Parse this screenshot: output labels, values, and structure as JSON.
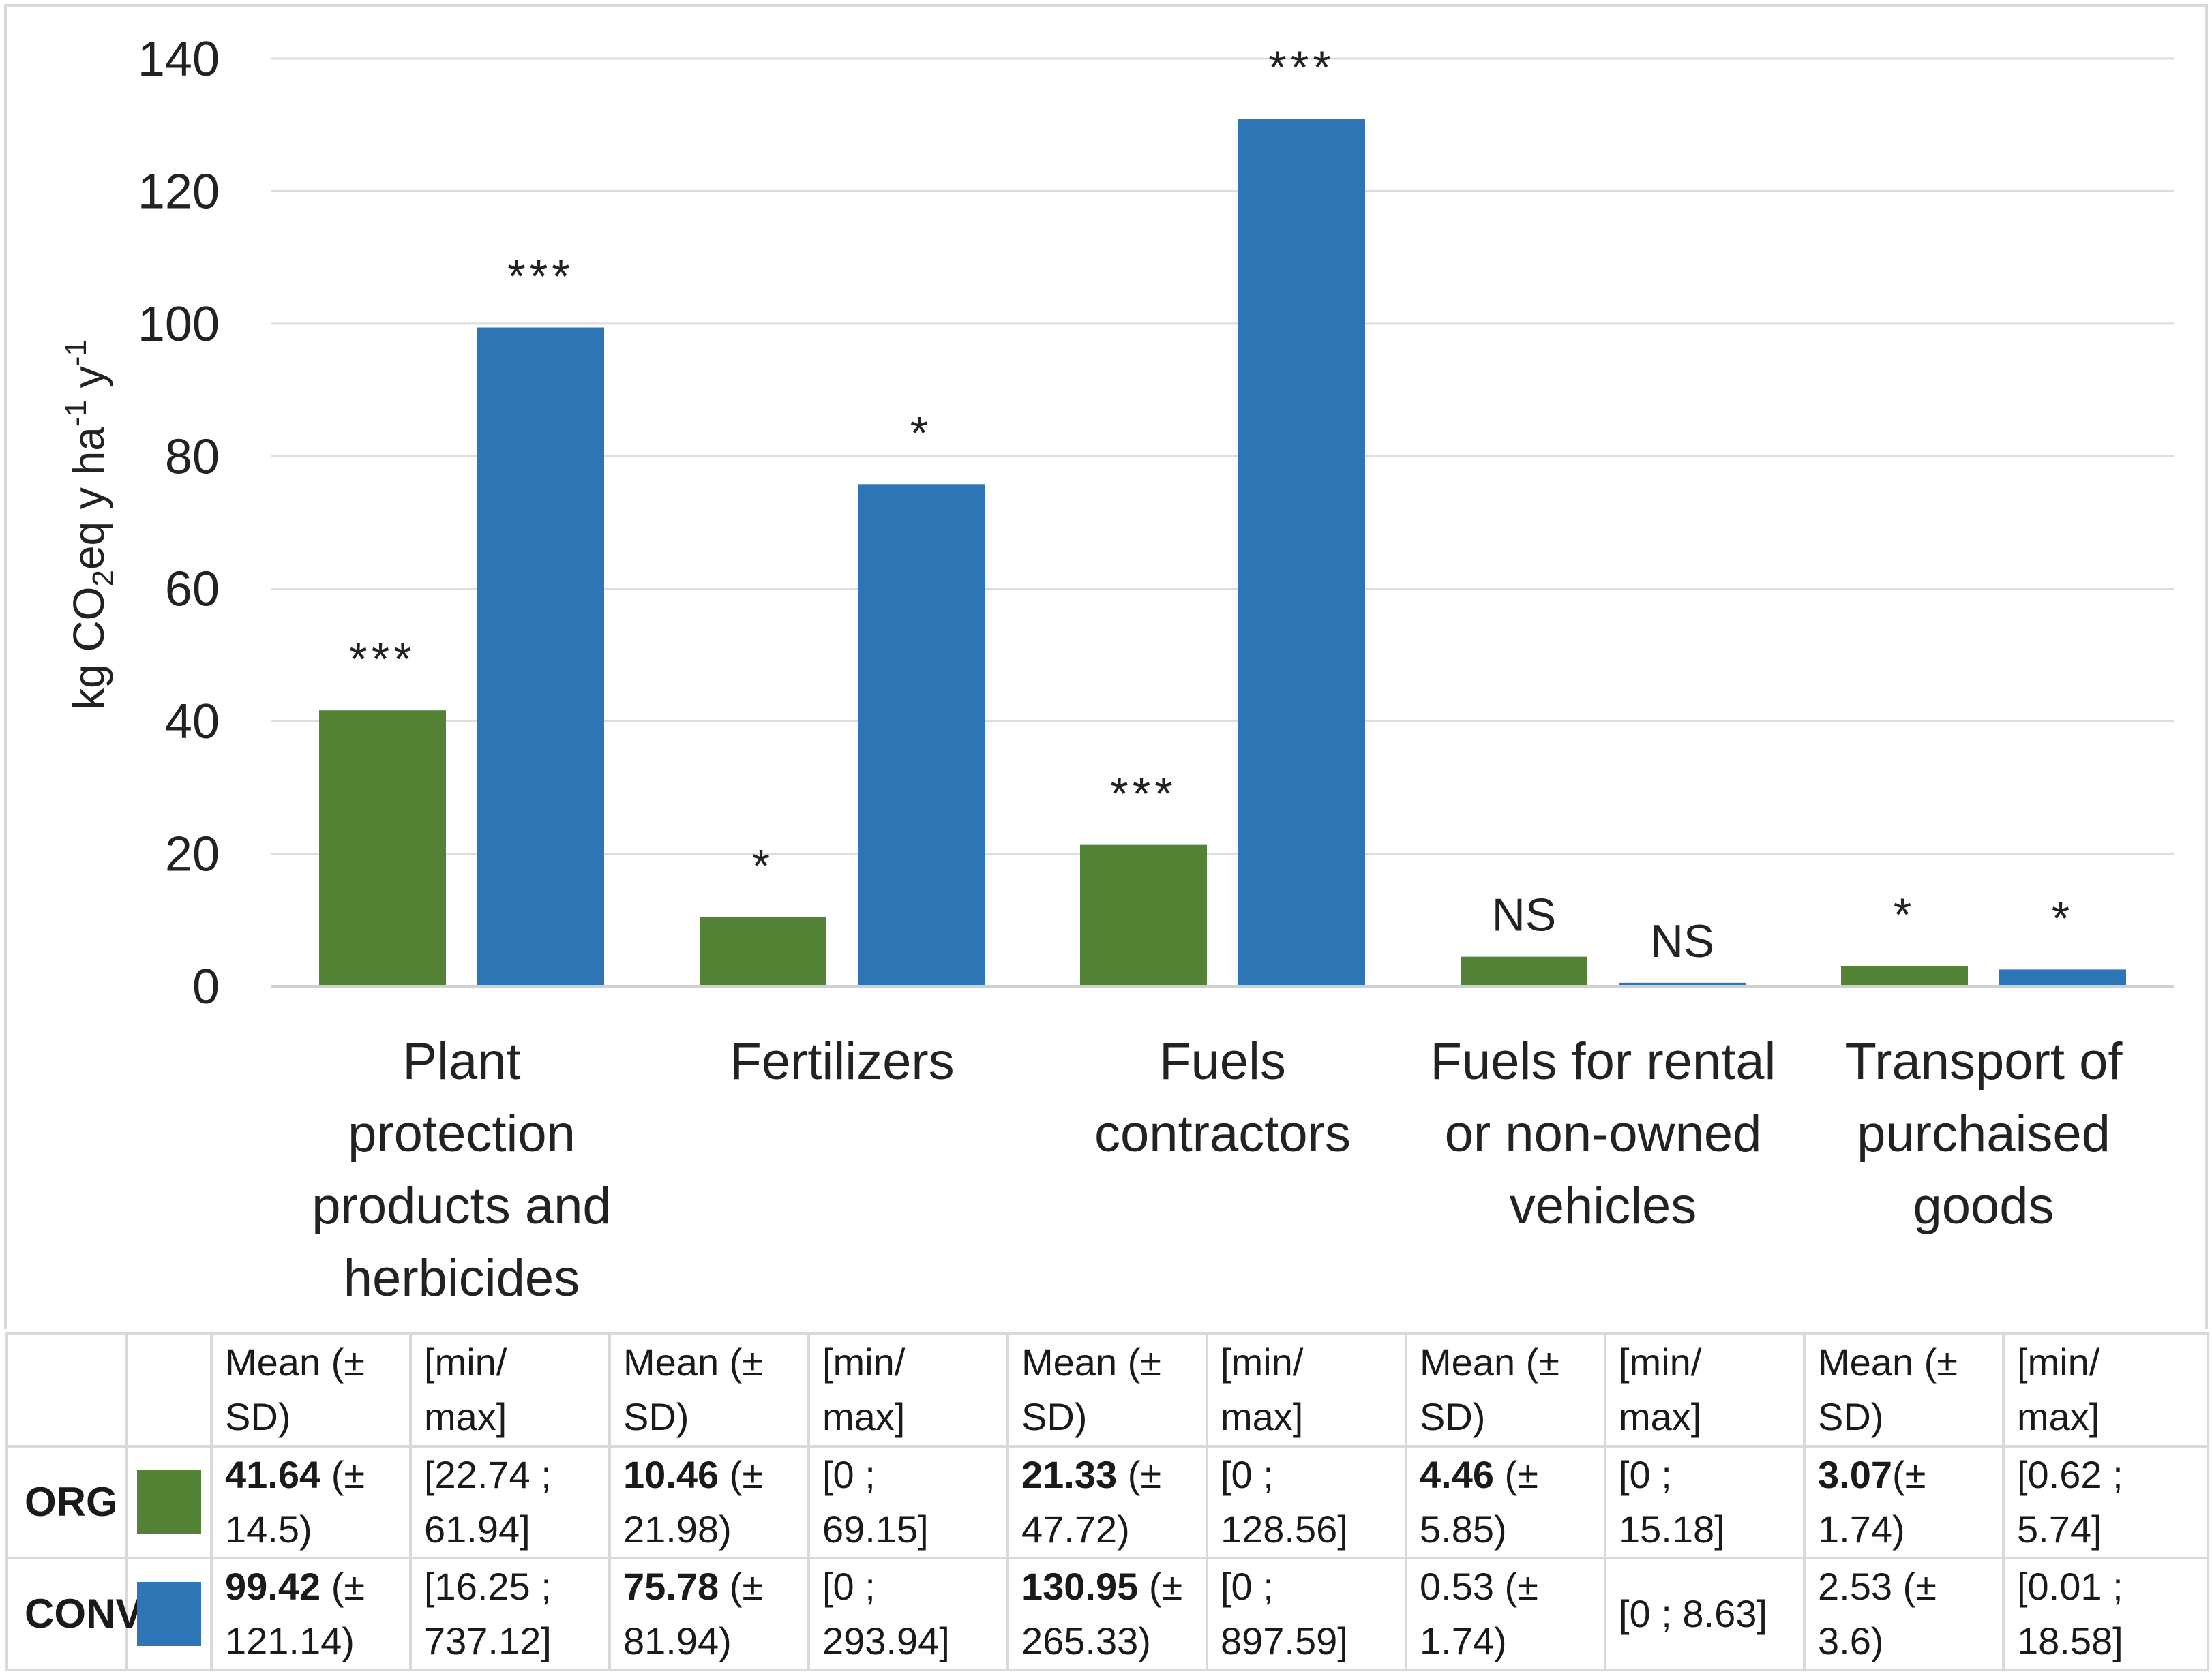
{
  "chart_data": {
    "type": "bar",
    "title": "",
    "xlabel": "",
    "ylabel": "kg CO2eq y ha-1 y-1",
    "ylabel_parts": {
      "pre": "kg CO",
      "sub": "2",
      "mid": "eq y ha",
      "sup1": "-1",
      "end": " y",
      "sup2": "-1"
    },
    "ylim": [
      0,
      140
    ],
    "yticks": [
      0,
      20,
      40,
      60,
      80,
      100,
      120,
      140
    ],
    "grid": true,
    "categories": [
      [
        "Plant",
        "protection",
        "products and",
        "herbicides"
      ],
      [
        "Fertilizers"
      ],
      [
        "Fuels",
        "contractors"
      ],
      [
        "Fuels for rental",
        "or non-owned",
        "vehicles"
      ],
      [
        "Transport of",
        "purchaised",
        "goods"
      ]
    ],
    "series": [
      {
        "name": "ORG",
        "color": "#548235",
        "values": [
          41.64,
          10.46,
          21.33,
          4.46,
          3.07
        ],
        "significance": [
          "***",
          "*",
          "***",
          "NS",
          "*"
        ]
      },
      {
        "name": "CONV",
        "color": "#2e75b6",
        "values": [
          99.42,
          75.78,
          130.95,
          0.53,
          2.53
        ],
        "significance": [
          "***",
          "*",
          "***",
          "NS",
          "*"
        ]
      }
    ]
  },
  "table": {
    "header": [
      [
        "Mean (±",
        "SD)"
      ],
      [
        "[min/",
        "max]"
      ],
      [
        "Mean (±",
        "SD)"
      ],
      [
        "[min/",
        "max]"
      ],
      [
        "Mean (±",
        "SD)"
      ],
      [
        "[min/",
        "max]"
      ],
      [
        "Mean (±",
        "SD)"
      ],
      [
        "[min/",
        "max]"
      ],
      [
        "Mean (±",
        "SD)"
      ],
      [
        "[min/",
        "max]"
      ]
    ],
    "rows": [
      {
        "label": "ORG",
        "color": "#548235",
        "cells": [
          {
            "bold": "41.64",
            "l1": " (±",
            "l2": "14.5)"
          },
          {
            "l1": "[22.74 ;",
            "l2": "61.94]"
          },
          {
            "bold": "10.46",
            "l1": " (±",
            "l2": "21.98)"
          },
          {
            "l1": "[0 ;",
            "l2": "69.15]"
          },
          {
            "bold": "21.33",
            "l1": " (±",
            "l2": "47.72)"
          },
          {
            "l1": "[0 ;",
            "l2": "128.56]"
          },
          {
            "bold": "4.46",
            "l1": " (±",
            "l2": "5.85)"
          },
          {
            "l1": "[0 ;",
            "l2": "15.18]"
          },
          {
            "bold": "3.07",
            "l1": "(±",
            "l2": "1.74)"
          },
          {
            "l1": "[0.62 ;",
            "l2": "5.74]"
          }
        ]
      },
      {
        "label": "CONV",
        "color": "#2e75b6",
        "cells": [
          {
            "bold": "99.42",
            "l1": " (±",
            "l2": "121.14)"
          },
          {
            "l1": "[16.25 ;",
            "l2": "737.12]"
          },
          {
            "bold": "75.78",
            "l1": " (±",
            "l2": "81.94)"
          },
          {
            "l1": "[0 ;",
            "l2": "293.94]"
          },
          {
            "bold": "130.95",
            "l1": " (±",
            "l2": "265.33)"
          },
          {
            "l1": "[0 ;",
            "l2": "897.59]"
          },
          {
            "l1": "0.53 (±",
            "l2": "1.74)"
          },
          {
            "l1": "[0 ; 8.63]"
          },
          {
            "l1": "2.53 (±",
            "l2": "3.6)"
          },
          {
            "l1": "[0.01 ;",
            "l2": "18.58]"
          }
        ]
      }
    ]
  }
}
